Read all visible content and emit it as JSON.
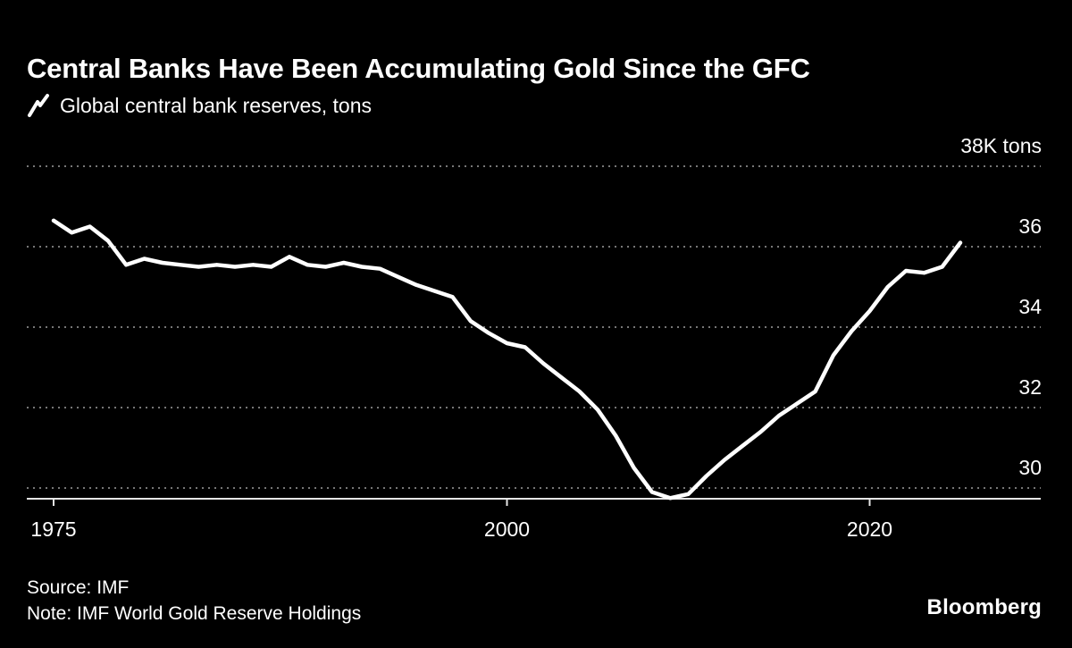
{
  "header": {
    "title": "Central Banks Have Been Accumulating Gold Since the GFC",
    "legend_label": "Global central bank reserves, tons"
  },
  "footer": {
    "source": "Source: IMF",
    "note": "Note: IMF World Gold Reserve Holdings",
    "logo": "Bloomberg"
  },
  "colors": {
    "background": "#000000",
    "line": "#ffffff",
    "grid": "#777777",
    "axis": "#e6e6e6",
    "text": "#ffffff"
  },
  "chart_data": {
    "type": "line",
    "title": "Central Banks Have Been Accumulating Gold Since the GFC",
    "series_name": "Global central bank reserves, tons",
    "unit": "thousand tons",
    "xlabel": "",
    "ylabel": "tons",
    "xlim": [
      1975,
      2025
    ],
    "ylim": [
      29.7,
      38
    ],
    "grid": "horizontal-dotted",
    "legend_position": "top-left",
    "y_ticks": [
      {
        "value": 38,
        "label": "38K tons"
      },
      {
        "value": 36,
        "label": "36"
      },
      {
        "value": 34,
        "label": "34"
      },
      {
        "value": 32,
        "label": "32"
      },
      {
        "value": 30,
        "label": "30"
      }
    ],
    "x_ticks": [
      {
        "year": 1975,
        "label": "1975"
      },
      {
        "year": 2000,
        "label": "2000"
      },
      {
        "year": 2020,
        "label": "2020"
      }
    ],
    "x": [
      1975,
      1976,
      1977,
      1978,
      1979,
      1980,
      1981,
      1982,
      1983,
      1984,
      1985,
      1986,
      1987,
      1988,
      1989,
      1990,
      1991,
      1992,
      1993,
      1994,
      1995,
      1996,
      1997,
      1998,
      1999,
      2000,
      2001,
      2002,
      2003,
      2004,
      2005,
      2006,
      2007,
      2008,
      2009,
      2010,
      2011,
      2012,
      2013,
      2014,
      2015,
      2016,
      2017,
      2018,
      2019,
      2020,
      2021,
      2022,
      2023,
      2024,
      2025
    ],
    "values": [
      36.65,
      36.35,
      36.5,
      36.15,
      35.55,
      35.7,
      35.6,
      35.55,
      35.5,
      35.55,
      35.5,
      35.55,
      35.5,
      35.75,
      35.55,
      35.5,
      35.6,
      35.5,
      35.45,
      35.25,
      35.05,
      34.9,
      34.75,
      34.15,
      33.85,
      33.6,
      33.5,
      33.1,
      32.75,
      32.4,
      31.95,
      31.3,
      30.5,
      29.9,
      29.75,
      29.85,
      30.3,
      30.7,
      31.05,
      31.4,
      31.8,
      32.1,
      32.4,
      33.3,
      33.9,
      34.4,
      35.0,
      35.4,
      35.35,
      35.5,
      36.1
    ]
  }
}
